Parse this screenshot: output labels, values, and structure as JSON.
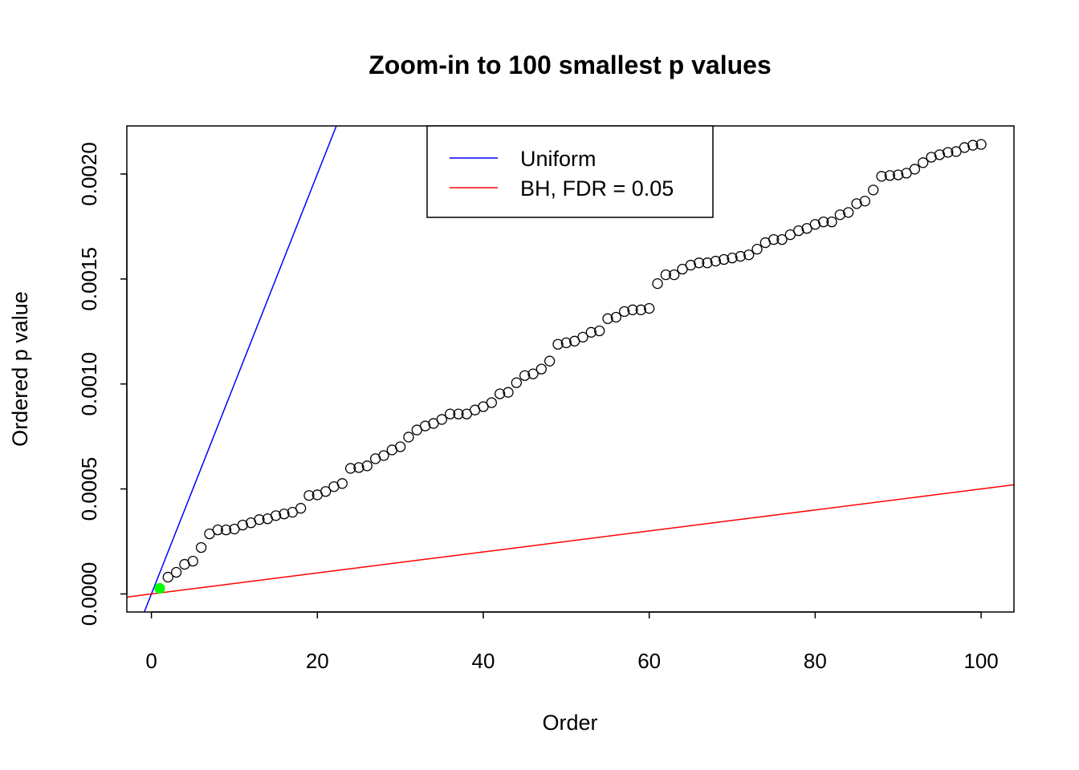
{
  "chart_data": {
    "type": "scatter",
    "title": "Zoom-in to 100 smallest p values",
    "xlabel": "Order",
    "ylabel": "Ordered p value",
    "xlim": [
      -2.96,
      103.96
    ],
    "ylim": [
      -8.6e-05,
      0.002229
    ],
    "xticks": [
      0,
      20,
      40,
      60,
      80,
      100
    ],
    "xtick_labels": [
      "0",
      "20",
      "40",
      "60",
      "80",
      "100"
    ],
    "yticks": [
      0,
      0.0005,
      0.001,
      0.0015,
      0.002
    ],
    "ytick_labels": [
      "0.0000",
      "0.0005",
      "0.0010",
      "0.0015",
      "0.0020"
    ],
    "grid": false,
    "legend_position": "top-center",
    "legend": [
      {
        "label": "Uniform",
        "color": "#0000ff"
      },
      {
        "label": "BH, FDR = 0.05",
        "color": "#ff0000"
      }
    ],
    "lines": [
      {
        "name": "Uniform",
        "slope": 0.0001,
        "intercept": 0,
        "color": "#0000ff"
      },
      {
        "name": "BH, FDR = 0.05",
        "slope": 5e-06,
        "intercept": 0,
        "color": "#ff0000"
      }
    ],
    "highlight": {
      "indices": [
        1
      ],
      "color": "#00ff00"
    },
    "x": [
      1,
      2,
      3,
      4,
      5,
      6,
      7,
      8,
      9,
      10,
      11,
      12,
      13,
      14,
      15,
      16,
      17,
      18,
      19,
      20,
      21,
      22,
      23,
      24,
      25,
      26,
      27,
      28,
      29,
      30,
      31,
      32,
      33,
      34,
      35,
      36,
      37,
      38,
      39,
      40,
      41,
      42,
      43,
      44,
      45,
      46,
      47,
      48,
      49,
      50,
      51,
      52,
      53,
      54,
      55,
      56,
      57,
      58,
      59,
      60,
      61,
      62,
      63,
      64,
      65,
      66,
      67,
      68,
      69,
      70,
      71,
      72,
      73,
      74,
      75,
      76,
      77,
      78,
      79,
      80,
      81,
      82,
      83,
      84,
      85,
      86,
      87,
      88,
      89,
      90,
      91,
      92,
      93,
      94,
      95,
      96,
      97,
      98,
      99,
      100
    ],
    "y": [
      2.67e-05,
      8e-05,
      0.000103,
      0.000141,
      0.000156,
      0.000221,
      0.000286,
      0.000305,
      0.000305,
      0.000309,
      0.000328,
      0.000339,
      0.000354,
      0.000358,
      0.000373,
      0.000381,
      0.000389,
      0.000408,
      0.000469,
      0.000472,
      0.000488,
      0.000511,
      0.000526,
      0.000598,
      0.000602,
      0.00061,
      0.000644,
      0.000659,
      0.000686,
      0.000701,
      0.000747,
      0.000781,
      0.0008,
      0.000812,
      0.000831,
      0.000857,
      0.000857,
      0.000857,
      0.000876,
      0.000892,
      0.000911,
      0.000953,
      0.00096,
      0.001006,
      0.00104,
      0.001048,
      0.001071,
      0.001109,
      0.001189,
      0.001196,
      0.001204,
      0.001223,
      0.001246,
      0.001253,
      0.001311,
      0.001318,
      0.001345,
      0.001353,
      0.001353,
      0.00136,
      0.001478,
      0.00152,
      0.00152,
      0.001547,
      0.001566,
      0.001577,
      0.001577,
      0.001585,
      0.001593,
      0.0016,
      0.001608,
      0.001615,
      0.001642,
      0.001673,
      0.001688,
      0.001688,
      0.001711,
      0.00173,
      0.001741,
      0.00176,
      0.001772,
      0.001772,
      0.001806,
      0.001817,
      0.001859,
      0.001871,
      0.001924,
      0.001989,
      0.001993,
      0.001996,
      0.002004,
      0.002023,
      0.002054,
      0.00208,
      0.002092,
      0.002103,
      0.002107,
      0.002126,
      0.002137,
      0.002141
    ]
  }
}
